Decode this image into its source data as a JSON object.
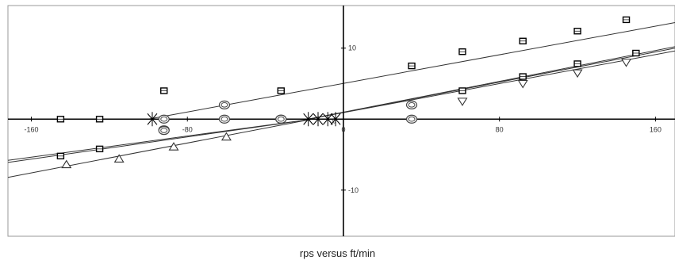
{
  "chart_data": {
    "type": "scatter",
    "title": "",
    "caption": "rps versus ft/min",
    "xlabel": "",
    "ylabel": "",
    "xlim": [
      -172,
      170
    ],
    "ylim": [
      -16.5,
      16
    ],
    "grid": false,
    "legend": "none",
    "x_ticks": [
      {
        "value": -160,
        "label": "-160"
      },
      {
        "value": -80,
        "label": "-80"
      },
      {
        "value": 0,
        "label": "0"
      },
      {
        "value": 80,
        "label": "80"
      },
      {
        "value": 160,
        "label": "160"
      }
    ],
    "y_ticks": [
      {
        "value": 10,
        "label": "10"
      },
      {
        "value": 0,
        "label": "0"
      },
      {
        "value": -10,
        "label": "-10"
      }
    ],
    "lines": [
      {
        "x": [
          -100,
          170
        ],
        "y": [
          0,
          13.6
        ]
      },
      {
        "x": [
          -18,
          170
        ],
        "y": [
          0,
          10.2
        ]
      },
      {
        "x": [
          -18,
          170
        ],
        "y": [
          0,
          10.0
        ]
      },
      {
        "x": [
          -18,
          170
        ],
        "y": [
          0,
          9.6
        ]
      },
      {
        "x": [
          -172,
          -16
        ],
        "y": [
          -5.8,
          0
        ]
      },
      {
        "x": [
          -172,
          -16
        ],
        "y": [
          -6.1,
          0
        ]
      },
      {
        "x": [
          -172,
          -16
        ],
        "y": [
          -8.2,
          0
        ]
      }
    ],
    "series": [
      {
        "marker": "square",
        "color": "#000000",
        "x": [
          -145,
          -125,
          -92,
          -32,
          35,
          61,
          92,
          120,
          145
        ],
        "y": [
          0,
          0,
          4,
          4,
          7.5,
          9.5,
          11,
          12.4,
          14
        ]
      },
      {
        "marker": "square",
        "color": "#000000",
        "x": [
          -145,
          -125,
          61,
          92,
          120,
          150
        ],
        "y": [
          -5.2,
          -4.2,
          4,
          6,
          7.8,
          9.3
        ]
      },
      {
        "marker": "circle",
        "color": "#444444",
        "x": [
          -92,
          -92,
          -92,
          -61,
          -61,
          -32,
          -32,
          35,
          35
        ],
        "y": [
          0,
          -1.5,
          -1.6,
          2,
          0,
          0,
          0,
          2,
          0
        ]
      },
      {
        "marker": "triangle-up",
        "color": "#333333",
        "x": [
          -142,
          -115,
          -87,
          -60
        ],
        "y": [
          -6.4,
          -5.6,
          -3.9,
          -2.5
        ]
      },
      {
        "marker": "triangle-down",
        "color": "#333333",
        "x": [
          61,
          92,
          120,
          145
        ],
        "y": [
          2.5,
          5,
          6.5,
          8
        ]
      },
      {
        "marker": "asterisk",
        "color": "#000000",
        "x": [
          -98,
          -18,
          -13,
          -8,
          -4
        ],
        "y": [
          0,
          0,
          0,
          0,
          0
        ]
      }
    ]
  }
}
